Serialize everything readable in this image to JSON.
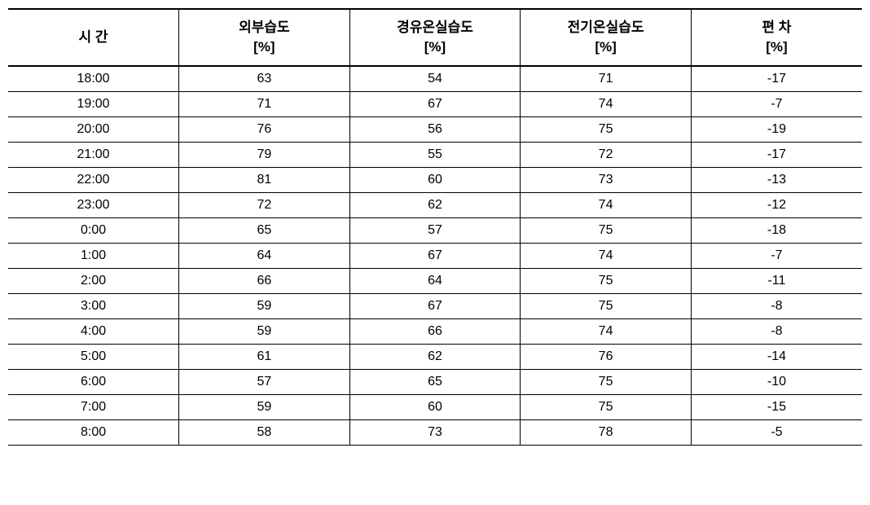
{
  "table": {
    "columns": [
      {
        "label": "시 간",
        "unit": ""
      },
      {
        "label": "외부습도",
        "unit": "[%]"
      },
      {
        "label": "경유온실습도",
        "unit": "[%]"
      },
      {
        "label": "전기온실습도",
        "unit": "[%]"
      },
      {
        "label": "편 차",
        "unit": "[%]"
      }
    ],
    "rows": [
      [
        "18:00",
        "63",
        "54",
        "71",
        "-17"
      ],
      [
        "19:00",
        "71",
        "67",
        "74",
        "-7"
      ],
      [
        "20:00",
        "76",
        "56",
        "75",
        "-19"
      ],
      [
        "21:00",
        "79",
        "55",
        "72",
        "-17"
      ],
      [
        "22:00",
        "81",
        "60",
        "73",
        "-13"
      ],
      [
        "23:00",
        "72",
        "62",
        "74",
        "-12"
      ],
      [
        "0:00",
        "65",
        "57",
        "75",
        "-18"
      ],
      [
        "1:00",
        "64",
        "67",
        "74",
        "-7"
      ],
      [
        "2:00",
        "66",
        "64",
        "75",
        "-11"
      ],
      [
        "3:00",
        "59",
        "67",
        "75",
        "-8"
      ],
      [
        "4:00",
        "59",
        "66",
        "74",
        "-8"
      ],
      [
        "5:00",
        "61",
        "62",
        "76",
        "-14"
      ],
      [
        "6:00",
        "57",
        "65",
        "75",
        "-10"
      ],
      [
        "7:00",
        "59",
        "60",
        "75",
        "-15"
      ],
      [
        "8:00",
        "58",
        "73",
        "78",
        "-5"
      ]
    ],
    "column_widths": [
      "20%",
      "20%",
      "20%",
      "20%",
      "20%"
    ],
    "header_fontsize": 17,
    "cell_fontsize": 16,
    "border_color": "#000000",
    "background_color": "#ffffff",
    "text_color": "#000000"
  }
}
